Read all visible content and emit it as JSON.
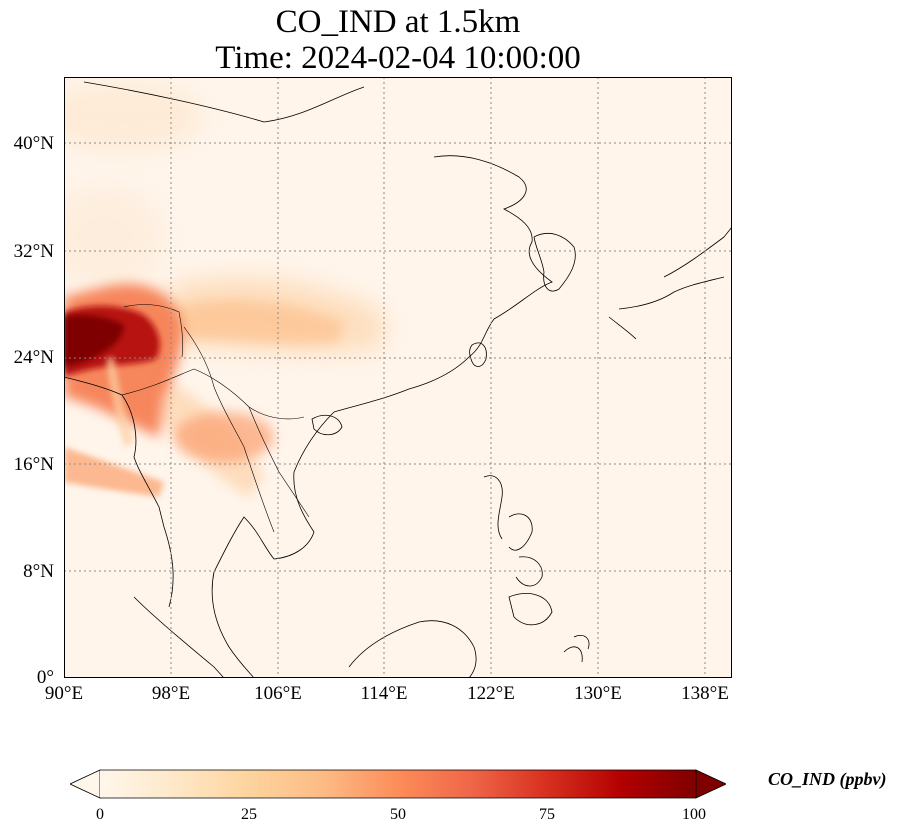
{
  "title": {
    "line1": "CO_IND at 1.5km",
    "line2": "Time: 2024-02-04 10:00:00"
  },
  "map": {
    "variable": "CO_IND",
    "height": "1.5km",
    "lon_range": [
      90,
      140
    ],
    "lat_range": [
      0,
      45
    ],
    "grid": "dotted",
    "lat_ticks": [
      "40°N",
      "32°N",
      "24°N",
      "16°N",
      "8°N",
      "0°"
    ],
    "lon_ticks": [
      "90°E",
      "98°E",
      "106°E",
      "114°E",
      "122°E",
      "130°E",
      "138°E"
    ],
    "background_color": "#fff5eb",
    "coastline_color": "#000000"
  },
  "colorbar": {
    "label": "CO_IND (ppbv)",
    "colormap": "OrRd",
    "colors": [
      "#fff7ec",
      "#fee8c8",
      "#fdd49e",
      "#fdbb84",
      "#fc8d59",
      "#ef6548",
      "#d7301f",
      "#b30000",
      "#7f0000"
    ],
    "min": 0,
    "max": 100,
    "extend": "both",
    "ticks": [
      "0",
      "25",
      "50",
      "75",
      "100"
    ]
  }
}
